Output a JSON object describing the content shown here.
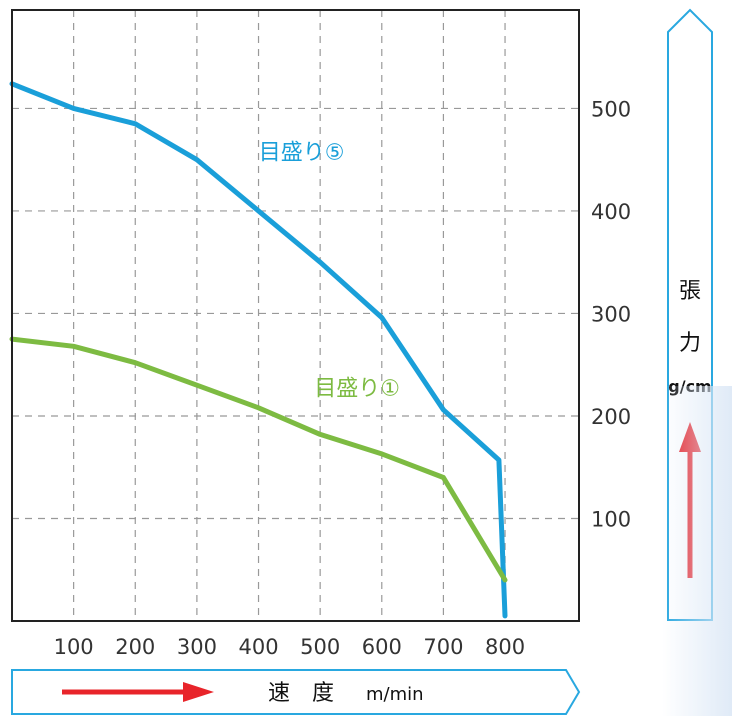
{
  "chart_data": {
    "type": "line",
    "x_ticks": [
      100,
      200,
      300,
      400,
      500,
      600,
      700,
      800
    ],
    "y_ticks": [
      100,
      200,
      300,
      400,
      500
    ],
    "xlim": [
      0,
      920
    ],
    "ylim": [
      0,
      596
    ],
    "grid": true,
    "xlabel": "速　度",
    "xlabel_unit": "m/min",
    "ylabel_chars": [
      "張",
      "力"
    ],
    "ylabel_unit": "g/cm",
    "series": [
      {
        "name": "目盛り⑤",
        "color": "#1a9fd9",
        "x": [
          0,
          100,
          200,
          300,
          400,
          500,
          600,
          700,
          790,
          800
        ],
        "y": [
          524,
          500,
          485,
          450,
          400,
          350,
          296,
          206,
          157,
          5
        ]
      },
      {
        "name": "目盛り①",
        "color": "#7dbb42",
        "x": [
          0,
          100,
          200,
          300,
          400,
          500,
          600,
          700,
          800
        ],
        "y": [
          275,
          268,
          252,
          230,
          208,
          182,
          163,
          140,
          40
        ]
      }
    ]
  },
  "colors": {
    "arrow_red": "#e8242a",
    "frame_blue": "#29a8e0",
    "grid": "#999999"
  }
}
